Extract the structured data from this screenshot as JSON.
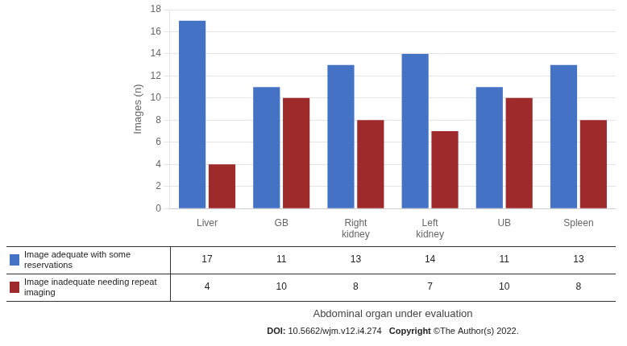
{
  "chart_data": {
    "type": "bar",
    "categories": [
      "Liver",
      "GB",
      "Right\nkidney",
      "Left\nkidney",
      "UB",
      "Spleen"
    ],
    "series": [
      {
        "name": "Image adequate with some\nreservations",
        "color": "#4472C4",
        "values": [
          17,
          11,
          13,
          14,
          11,
          13
        ]
      },
      {
        "name": "Image inadequate needing repeat\nimaging",
        "color": "#9E2A2B",
        "values": [
          4,
          10,
          8,
          7,
          10,
          8
        ]
      }
    ],
    "ylabel": "Images (n)",
    "xlabel": "Abdominal organ under evaluation",
    "ylim": [
      0,
      18
    ],
    "yticks": [
      0,
      2,
      4,
      6,
      8,
      10,
      12,
      14,
      16,
      18
    ],
    "grid": true,
    "annotations": [
      "DOI: 10.5662/wjm.v12.i4.274",
      "Copyright ©The Author(s) 2022."
    ]
  }
}
